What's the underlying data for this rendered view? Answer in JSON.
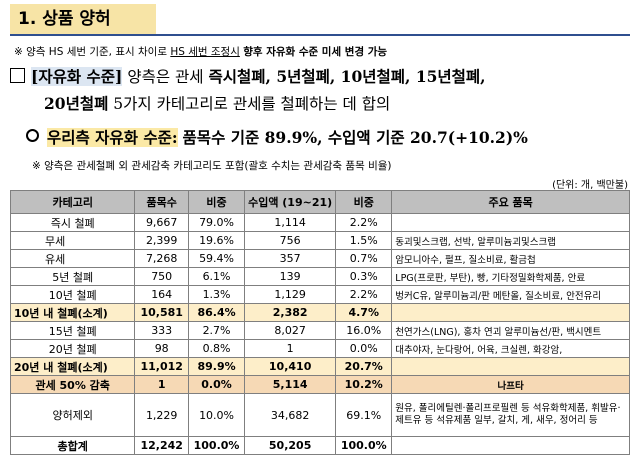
{
  "heading": "1. 상품 양허",
  "note1": {
    "prefix": "※ 양측 HS 세번 기준, 표시 차이로",
    "u1": "HS 세번 조정시",
    "bold": "향후 자유화 수준 미세 변경 가능"
  },
  "bullet": {
    "label": "[자유화 수준]",
    "text1": "양측은 관세",
    "b1": "즉시철폐, 5년철폐, 10년철폐, 15년철폐,",
    "b2": "20년철폐",
    "text2": "5가지 카테고리로 관세를 철폐하는 데 합의"
  },
  "sub": {
    "label": "우리측 자유화 수준:",
    "text": "품목수 기준 89.9%, 수입액 기준 20.7(+10.2)%"
  },
  "note2": "※ 양측은 관세철폐 외 관세감축 카테고리도 포함(괄호 수치는 관세감축 품목 비율)",
  "unit": "(단위: 개, 백만불)",
  "table": {
    "headers": [
      "카테고리",
      "품목수",
      "비중",
      "수입액 (19~21)",
      "비중",
      "주요 품목"
    ],
    "rows": [
      {
        "cat": "즉시 철폐",
        "count": "9,667",
        "share": "79.0%",
        "import": "1,114",
        "ishare": "2.2%",
        "items": ""
      },
      {
        "cat": "무세",
        "count": "2,399",
        "share": "19.6%",
        "import": "756",
        "ishare": "1.5%",
        "items": "동괴및스크랩, 선박, 알루미늄괴및스크랩"
      },
      {
        "cat": "유세",
        "count": "7,268",
        "share": "59.4%",
        "import": "357",
        "ishare": "0.7%",
        "items": "암모니아수, 펄프, 질소비료, 활금첩"
      },
      {
        "cat": "5년 철폐",
        "count": "750",
        "share": "6.1%",
        "import": "139",
        "ishare": "0.3%",
        "items": "LPG(프로판, 부탄), 빵, 기타정밀화학제품, 안료"
      },
      {
        "cat": "10년 철폐",
        "count": "164",
        "share": "1.3%",
        "import": "1,129",
        "ishare": "2.2%",
        "items": "벙커C유, 알루미늄괴/판 메탄올, 질소비료, 안전유리"
      },
      {
        "cat": "10년 내 철폐(소계)",
        "count": "10,581",
        "share": "86.4%",
        "import": "2,382",
        "ishare": "4.7%",
        "items": ""
      },
      {
        "cat": "15년 철폐",
        "count": "333",
        "share": "2.7%",
        "import": "8,027",
        "ishare": "16.0%",
        "items": "천연가스(LNG), 홍차 연괴 알루미늄선/판, 백시멘트"
      },
      {
        "cat": "20년 철폐",
        "count": "98",
        "share": "0.8%",
        "import": "1",
        "ishare": "0.0%",
        "items": "대추야자, 눈다랑어, 어육, 크실렌, 화강암,"
      },
      {
        "cat": "20년 내 철폐(소계)",
        "count": "11,012",
        "share": "89.9%",
        "import": "10,410",
        "ishare": "20.7%",
        "items": ""
      },
      {
        "cat": "관세 50% 감축",
        "count": "1",
        "share": "0.0%",
        "import": "5,114",
        "ishare": "10.2%",
        "items": "나프타"
      },
      {
        "cat": "양허제외",
        "count": "1,229",
        "share": "10.0%",
        "import": "34,682",
        "ishare": "69.1%",
        "items": "원유, 폴리에틸렌·폴리프로필렌 등 석유화학제품, 휘발유·제트유 등 석유제품 일부, 갈치, 게, 새우, 정어리 등"
      },
      {
        "cat": "총합계",
        "count": "12,242",
        "share": "100.0%",
        "import": "50,205",
        "ishare": "100.0%",
        "items": ""
      }
    ]
  }
}
